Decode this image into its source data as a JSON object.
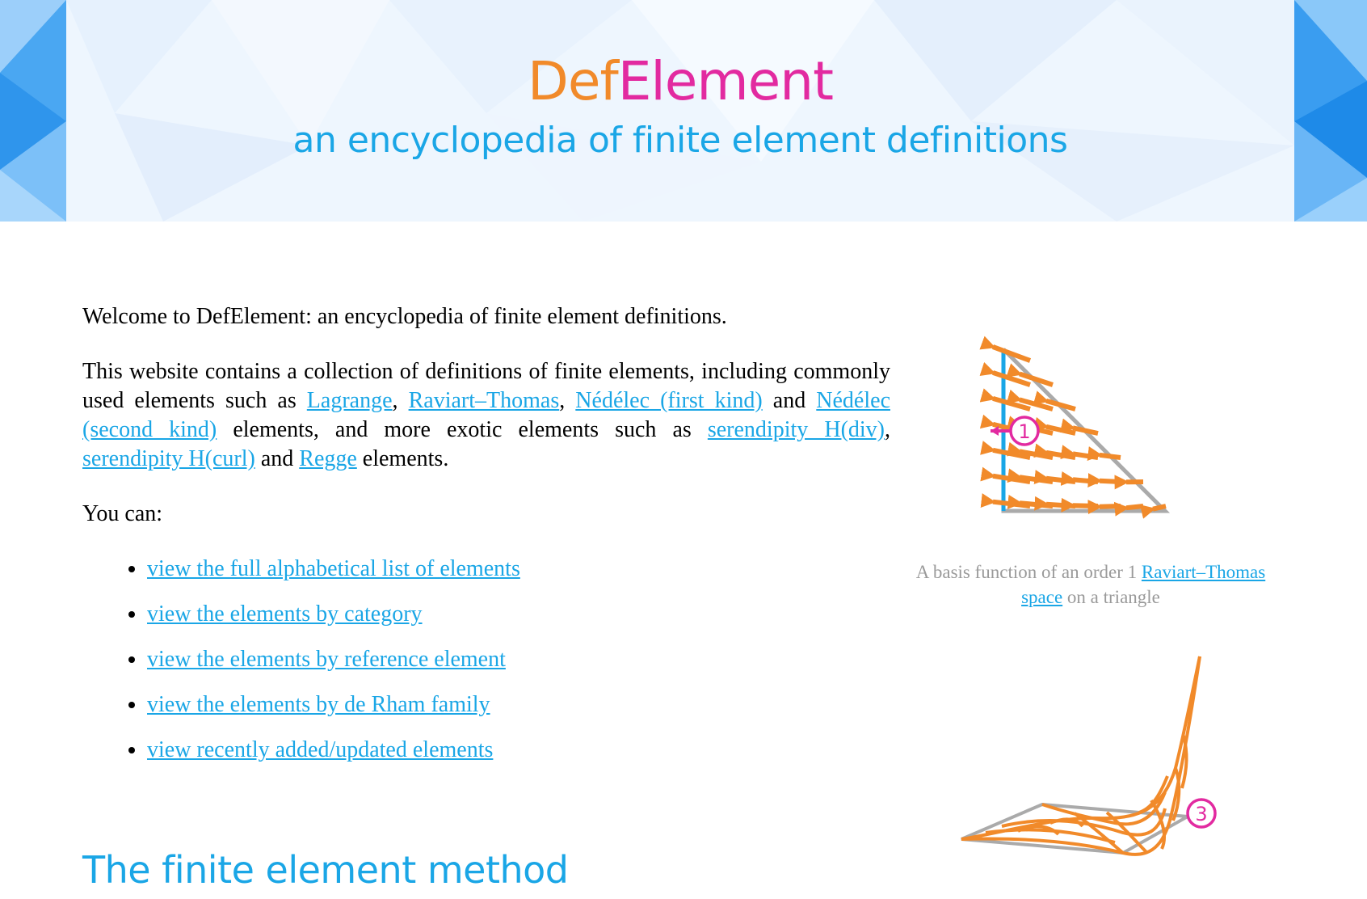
{
  "header": {
    "title_part1": "Def",
    "title_part2": "Element",
    "subtitle": "an encyclopedia of finite element definitions"
  },
  "intro": {
    "welcome": "Welcome to DefElement: an encyclopedia of finite element definitions.",
    "p2_a": "This website contains a collection of definitions of finite elements, including commonly used elements such as ",
    "link_lagrange": "Lagrange",
    "sep1": ", ",
    "link_rt": "Raviart–Thomas",
    "sep2": ", ",
    "link_ned1": "Nédélec (first kind)",
    "p2_b": " and ",
    "link_ned2": "Nédélec (second kind)",
    "p2_c": " elements, and more exotic elements such as ",
    "link_ser_div": "serendipity H(div)",
    "sep3": ", ",
    "link_ser_curl": "serendipity H(curl)",
    "p2_d": " and ",
    "link_regge": "Regge",
    "p2_e": " elements.",
    "you_can": "You can:"
  },
  "links": [
    "view the full alphabetical list of elements",
    "view the elements by category",
    "view the elements by reference element",
    "view the elements by de Rham family",
    "view recently added/updated elements"
  ],
  "figure1": {
    "marker_label": "1",
    "caption_a": "A basis function of an order 1 ",
    "caption_link": "Raviart–Thomas space",
    "caption_b": " on a triangle"
  },
  "figure2": {
    "marker_label": "3"
  },
  "section": {
    "heading": "The finite element method"
  },
  "colors": {
    "accent_blue": "#1aa6e6",
    "orange": "#f18a2a",
    "magenta": "#e22aa0",
    "gray": "#9a9a9a"
  }
}
